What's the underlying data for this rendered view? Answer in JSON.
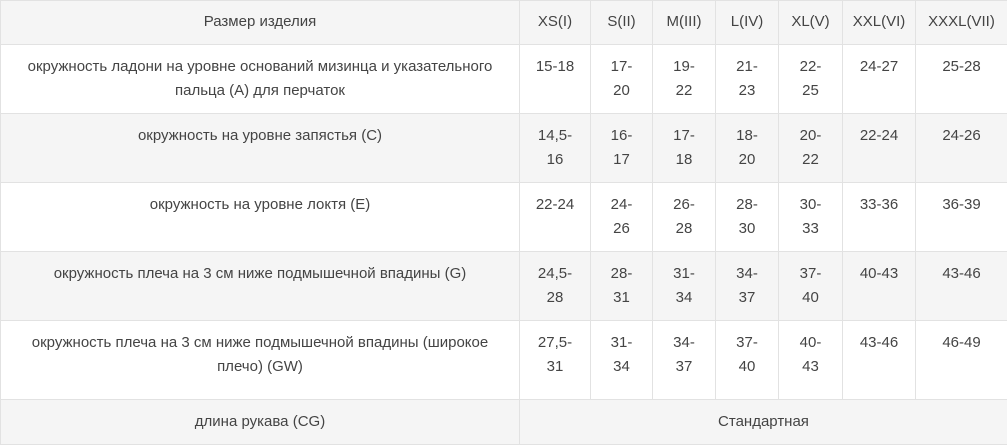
{
  "table": {
    "headers": [
      "Размер изделия",
      "XS(I)",
      "S(II)",
      "M(III)",
      "L(IV)",
      "XL(V)",
      "XXL(VI)",
      "XXXL(VII)"
    ],
    "rows": [
      {
        "label": "окружность ладони на уровне оснований мизинца и указательного пальца (A) для перчаток",
        "values": [
          "15-18",
          "17-20",
          "19-22",
          "21-23",
          "22-25",
          "24-27",
          "25-28"
        ]
      },
      {
        "label": "окружность на уровне запястья (C)",
        "values": [
          "14,5-16",
          "16-17",
          "17-18",
          "18-20",
          "20-22",
          "22-24",
          "24-26"
        ]
      },
      {
        "label": "окружность на уровне локтя (E)",
        "values": [
          "22-24",
          "24-26",
          "26-28",
          "28-30",
          "30-33",
          "33-36",
          "36-39"
        ]
      },
      {
        "label": "окружность плеча на 3 см ниже подмышечной впадины (G)",
        "values": [
          "24,5-28",
          "28-31",
          "31-34",
          "34-37",
          "37-40",
          "40-43",
          "43-46"
        ]
      },
      {
        "label": "окружность плеча на 3 см ниже подмышечной впадины (широкое плечо) (GW)",
        "values": [
          "27,5-31",
          "31-34",
          "34-37",
          "37-40",
          "40-43",
          "43-46",
          "46-49"
        ]
      }
    ],
    "footer": {
      "label": "длина рукава (CG)",
      "value": "Стандартная"
    }
  }
}
